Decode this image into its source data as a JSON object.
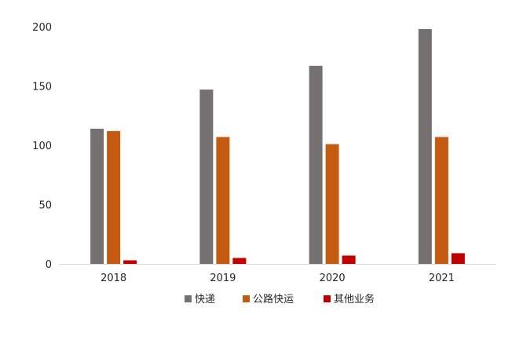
{
  "chart_data": {
    "type": "bar",
    "categories": [
      "2018",
      "2019",
      "2020",
      "2021"
    ],
    "series": [
      {
        "name": "快递",
        "color": "#767171",
        "values": [
          114,
          147,
          167,
          198
        ]
      },
      {
        "name": "公路快运",
        "color": "#C55A11",
        "values": [
          112,
          107,
          101,
          107
        ]
      },
      {
        "name": "其他业务",
        "color": "#C00000",
        "values": [
          3,
          5,
          7,
          9
        ]
      }
    ],
    "ylim": [
      0,
      200
    ],
    "yticks": [
      0,
      50,
      100,
      150,
      200
    ],
    "grid": false,
    "legend_position": "bottom"
  }
}
